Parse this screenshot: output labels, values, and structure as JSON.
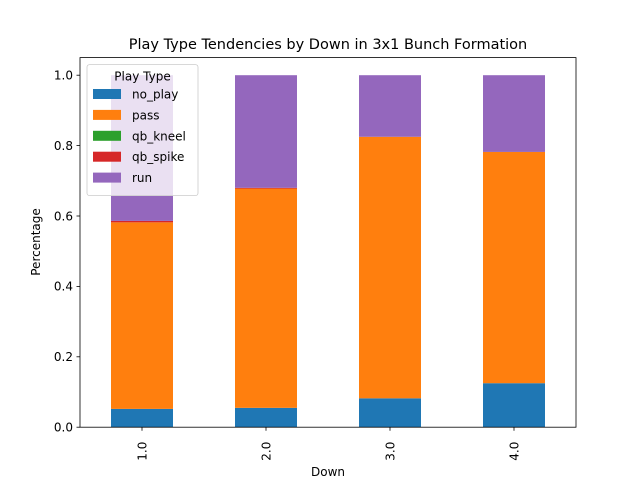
{
  "chart_data": {
    "type": "bar",
    "stacked": true,
    "title": "Play Type Tendencies by Down in 3x1 Bunch Formation",
    "xlabel": "Down",
    "ylabel": "Percentage",
    "categories": [
      "1.0",
      "2.0",
      "3.0",
      "4.0"
    ],
    "ylim": [
      0,
      1.05
    ],
    "yticks": [
      "0.0",
      "0.2",
      "0.4",
      "0.6",
      "0.8",
      "1.0"
    ],
    "grid": false,
    "legend": {
      "title": "Play Type",
      "placement": "top-left"
    },
    "series": [
      {
        "name": "no_play",
        "color": "#1f77b4",
        "values": [
          0.052,
          0.055,
          0.082,
          0.125
        ]
      },
      {
        "name": "pass",
        "color": "#ff7f0e",
        "values": [
          0.53,
          0.623,
          0.743,
          0.657
        ]
      },
      {
        "name": "qb_kneel",
        "color": "#2ca02c",
        "values": [
          0.0,
          0.0,
          0.0,
          0.0
        ]
      },
      {
        "name": "qb_spike",
        "color": "#d62728",
        "values": [
          0.004,
          0.002,
          0.0,
          0.0
        ]
      },
      {
        "name": "run",
        "color": "#9467bd",
        "values": [
          0.414,
          0.32,
          0.175,
          0.218
        ]
      }
    ]
  }
}
